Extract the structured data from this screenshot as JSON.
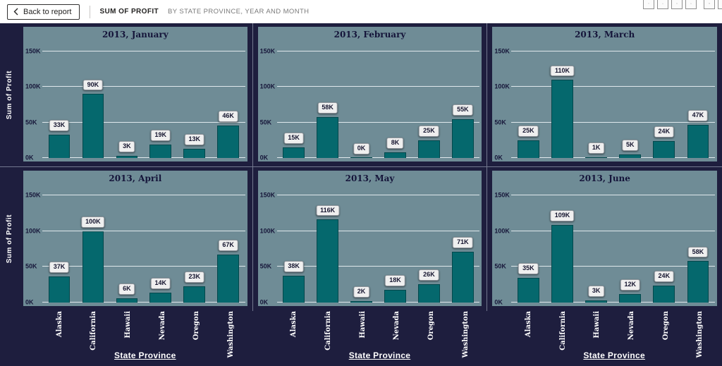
{
  "toolbar": {
    "back_label": "Back to report",
    "title": "SUM OF PROFIT",
    "subtitle": "BY STATE PROVINCE, YEAR AND MONTH",
    "icon_buttons": [
      "drill-up",
      "drill-down",
      "show-next-level",
      "expand-all",
      "filter",
      "clipped-edge-button"
    ]
  },
  "colors": {
    "canvas_bg": "#1e1e3e",
    "plot_bg": "#6f8c96",
    "bar": "#05686d",
    "gridline": "#ebf2f5",
    "label_box_bg": "#efefef",
    "panel_title_text": "#15153a",
    "axis_text": "#ffffff"
  },
  "chart_data": {
    "type": "bar",
    "small_multiples": true,
    "title": "Sum of Profit by State Province, Year and Month",
    "categories": [
      "Alaska",
      "California",
      "Hawaii",
      "Nevada",
      "Oregon",
      "Washington"
    ],
    "x_axis_title": "State Province",
    "y_axis_title": "Sum of Profit",
    "y_ticks_k": [
      150,
      100,
      50,
      0
    ],
    "ylim_k": [
      0,
      150
    ],
    "grid": true,
    "unit": "K",
    "panels": [
      {
        "title": "2013, January",
        "values_k": [
          33,
          90,
          3,
          19,
          13,
          46
        ]
      },
      {
        "title": "2013, February",
        "values_k": [
          15,
          58,
          0,
          8,
          25,
          55
        ]
      },
      {
        "title": "2013, March",
        "values_k": [
          25,
          110,
          1,
          5,
          24,
          47
        ]
      },
      {
        "title": "2013, April",
        "values_k": [
          37,
          100,
          6,
          14,
          23,
          67
        ]
      },
      {
        "title": "2013, May",
        "values_k": [
          38,
          116,
          2,
          18,
          26,
          71
        ]
      },
      {
        "title": "2013, June",
        "values_k": [
          35,
          109,
          3,
          12,
          24,
          58
        ]
      }
    ]
  }
}
